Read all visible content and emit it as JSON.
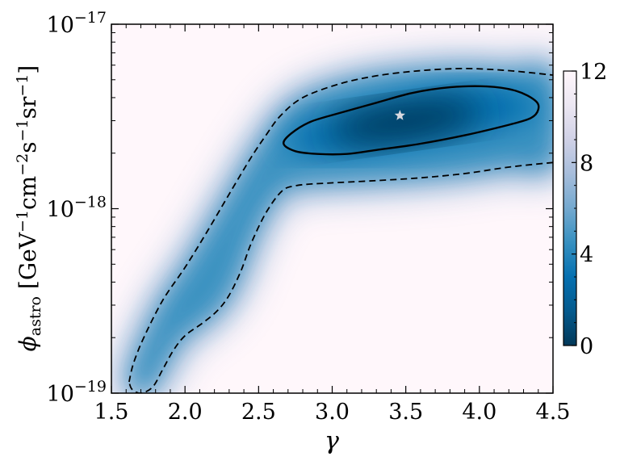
{
  "chart_data": {
    "type": "heatmap",
    "x": {
      "label": "γ",
      "range": [
        1.5,
        4.5
      ],
      "ticks": [
        1.5,
        2.0,
        2.5,
        3.0,
        3.5,
        4.0,
        4.5
      ],
      "tick_labels": [
        "1.5",
        "2.0",
        "2.5",
        "3.0",
        "3.5",
        "4.0",
        "4.5"
      ]
    },
    "y": {
      "label": "ϕastro [GeV−1cm−2s−1sr−1]",
      "scale": "log",
      "range": [
        1e-19,
        1e-17
      ],
      "ticks": [
        1e-19,
        1e-18,
        1e-17
      ],
      "tick_labels": [
        "10−19",
        "10−18",
        "10−17"
      ]
    },
    "colorbar": {
      "range": [
        0,
        12
      ],
      "ticks": [
        0,
        4,
        8,
        12
      ],
      "tick_labels": [
        "0",
        "4",
        "8",
        "12"
      ],
      "colormap": "PuBu_r",
      "colors": [
        "#023858",
        "#045a8d",
        "#0570b0",
        "#3690c0",
        "#74a9cf",
        "#a6bddb",
        "#d0d1e6",
        "#ece7f2",
        "#fff7fb"
      ]
    },
    "best_fit": {
      "gamma": 3.46,
      "phi": 3.2e-18
    },
    "contours": [
      {
        "style": "solid",
        "points": [
          [
            2.67,
            2.25e-18
          ],
          [
            2.72,
            2.55e-18
          ],
          [
            2.85,
            2.95e-18
          ],
          [
            3.05,
            3.3e-18
          ],
          [
            3.3,
            3.75e-18
          ],
          [
            3.55,
            4.25e-18
          ],
          [
            3.8,
            4.55e-18
          ],
          [
            4.05,
            4.6e-18
          ],
          [
            4.25,
            4.35e-18
          ],
          [
            4.38,
            3.85e-18
          ],
          [
            4.4,
            3.45e-18
          ],
          [
            4.35,
            3.1e-18
          ],
          [
            4.2,
            2.85e-18
          ],
          [
            3.9,
            2.5e-18
          ],
          [
            3.6,
            2.25e-18
          ],
          [
            3.3,
            2.08e-18
          ],
          [
            3.1,
            1.98e-18
          ],
          [
            2.9,
            1.98e-18
          ],
          [
            2.75,
            2.05e-18
          ],
          [
            2.67,
            2.25e-18
          ]
        ]
      },
      {
        "style": "dashed",
        "points": [
          [
            1.62,
            1.15e-19
          ],
          [
            1.65,
            1.45e-19
          ],
          [
            1.72,
            2e-19
          ],
          [
            1.85,
            3.2e-19
          ],
          [
            2.0,
            4.8e-19
          ],
          [
            2.15,
            7.5e-19
          ],
          [
            2.3,
            1.2e-18
          ],
          [
            2.45,
            1.9e-18
          ],
          [
            2.55,
            2.5e-18
          ],
          [
            2.65,
            3.2e-18
          ],
          [
            2.8,
            4e-18
          ],
          [
            3.05,
            4.75e-18
          ],
          [
            3.3,
            5.25e-18
          ],
          [
            3.6,
            5.6e-18
          ],
          [
            3.9,
            5.75e-18
          ],
          [
            4.2,
            5.6e-18
          ],
          [
            4.5,
            5.3e-18
          ]
        ]
      },
      {
        "style": "dashed",
        "points": [
          [
            4.5,
            1.78e-18
          ],
          [
            4.2,
            1.68e-18
          ],
          [
            3.9,
            1.55e-18
          ],
          [
            3.6,
            1.47e-18
          ],
          [
            3.3,
            1.42e-18
          ],
          [
            3.0,
            1.38e-18
          ],
          [
            2.85,
            1.36e-18
          ],
          [
            2.75,
            1.33e-18
          ],
          [
            2.66,
            1.25e-18
          ],
          [
            2.55,
            9.5e-19
          ],
          [
            2.45,
            6.5e-19
          ],
          [
            2.38,
            4.6e-19
          ],
          [
            2.3,
            3.4e-19
          ],
          [
            2.22,
            2.8e-19
          ],
          [
            2.12,
            2.4e-19
          ],
          [
            2.0,
            2.05e-19
          ],
          [
            1.92,
            1.7e-19
          ],
          [
            1.85,
            1.35e-19
          ],
          [
            1.78,
            1.08e-19
          ],
          [
            1.7,
            1e-19
          ],
          [
            1.64,
            1.05e-19
          ],
          [
            1.62,
            1.15e-19
          ]
        ]
      }
    ]
  }
}
